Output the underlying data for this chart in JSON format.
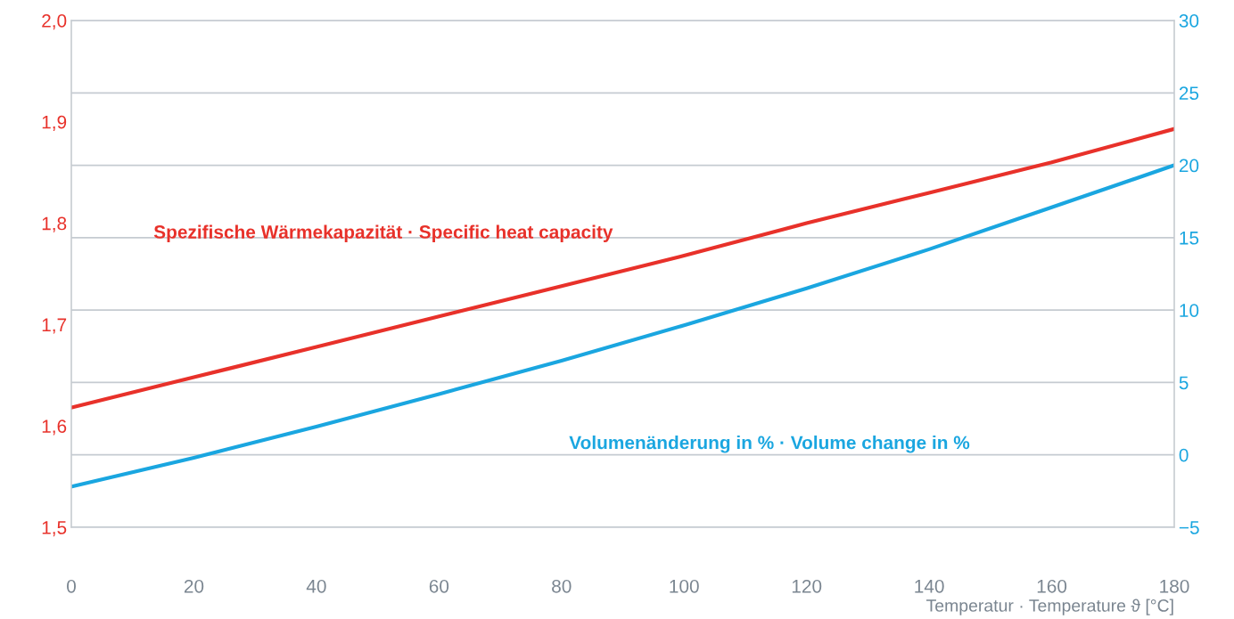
{
  "chart_data": {
    "type": "line",
    "xlabel": "Temperatur · Temperature ϑ [°C]",
    "x": [
      0,
      20,
      40,
      60,
      80,
      100,
      120,
      140,
      160,
      180
    ],
    "series": [
      {
        "name": "Spezifische Wärmekapazität · Specific heat capacity",
        "color": "#e8312a",
        "values": [
          1.618,
          1.648,
          1.678,
          1.708,
          1.738,
          1.768,
          1.8,
          1.83,
          1.86,
          1.893
        ]
      },
      {
        "name": "Volumenänderung in % · Volume change in %",
        "color": "#1aa6e0",
        "axis": "y2",
        "values": [
          -2.2,
          -0.2,
          1.95,
          4.2,
          6.5,
          8.95,
          11.5,
          14.2,
          17.1,
          20
        ]
      }
    ],
    "xlim": [
      0,
      180
    ],
    "xticks": [
      0,
      20,
      40,
      60,
      80,
      100,
      120,
      140,
      160,
      180
    ],
    "ylim": [
      1.5,
      2.0
    ],
    "yticks": [
      {
        "value": 1.5,
        "label": "1,5"
      },
      {
        "value": 1.6,
        "label": "1,6"
      },
      {
        "value": 1.7,
        "label": "1,7"
      },
      {
        "value": 1.8,
        "label": "1,8"
      },
      {
        "value": 1.9,
        "label": "1,9"
      },
      {
        "value": 2.0,
        "label": "2,0"
      }
    ],
    "y2lim": [
      -5,
      30
    ],
    "y2ticks": [
      {
        "value": -5,
        "label": "−5"
      },
      0,
      5,
      10,
      15,
      20,
      25,
      30
    ],
    "grid": true,
    "legend": false,
    "marker": "none",
    "line_style": "solid"
  }
}
